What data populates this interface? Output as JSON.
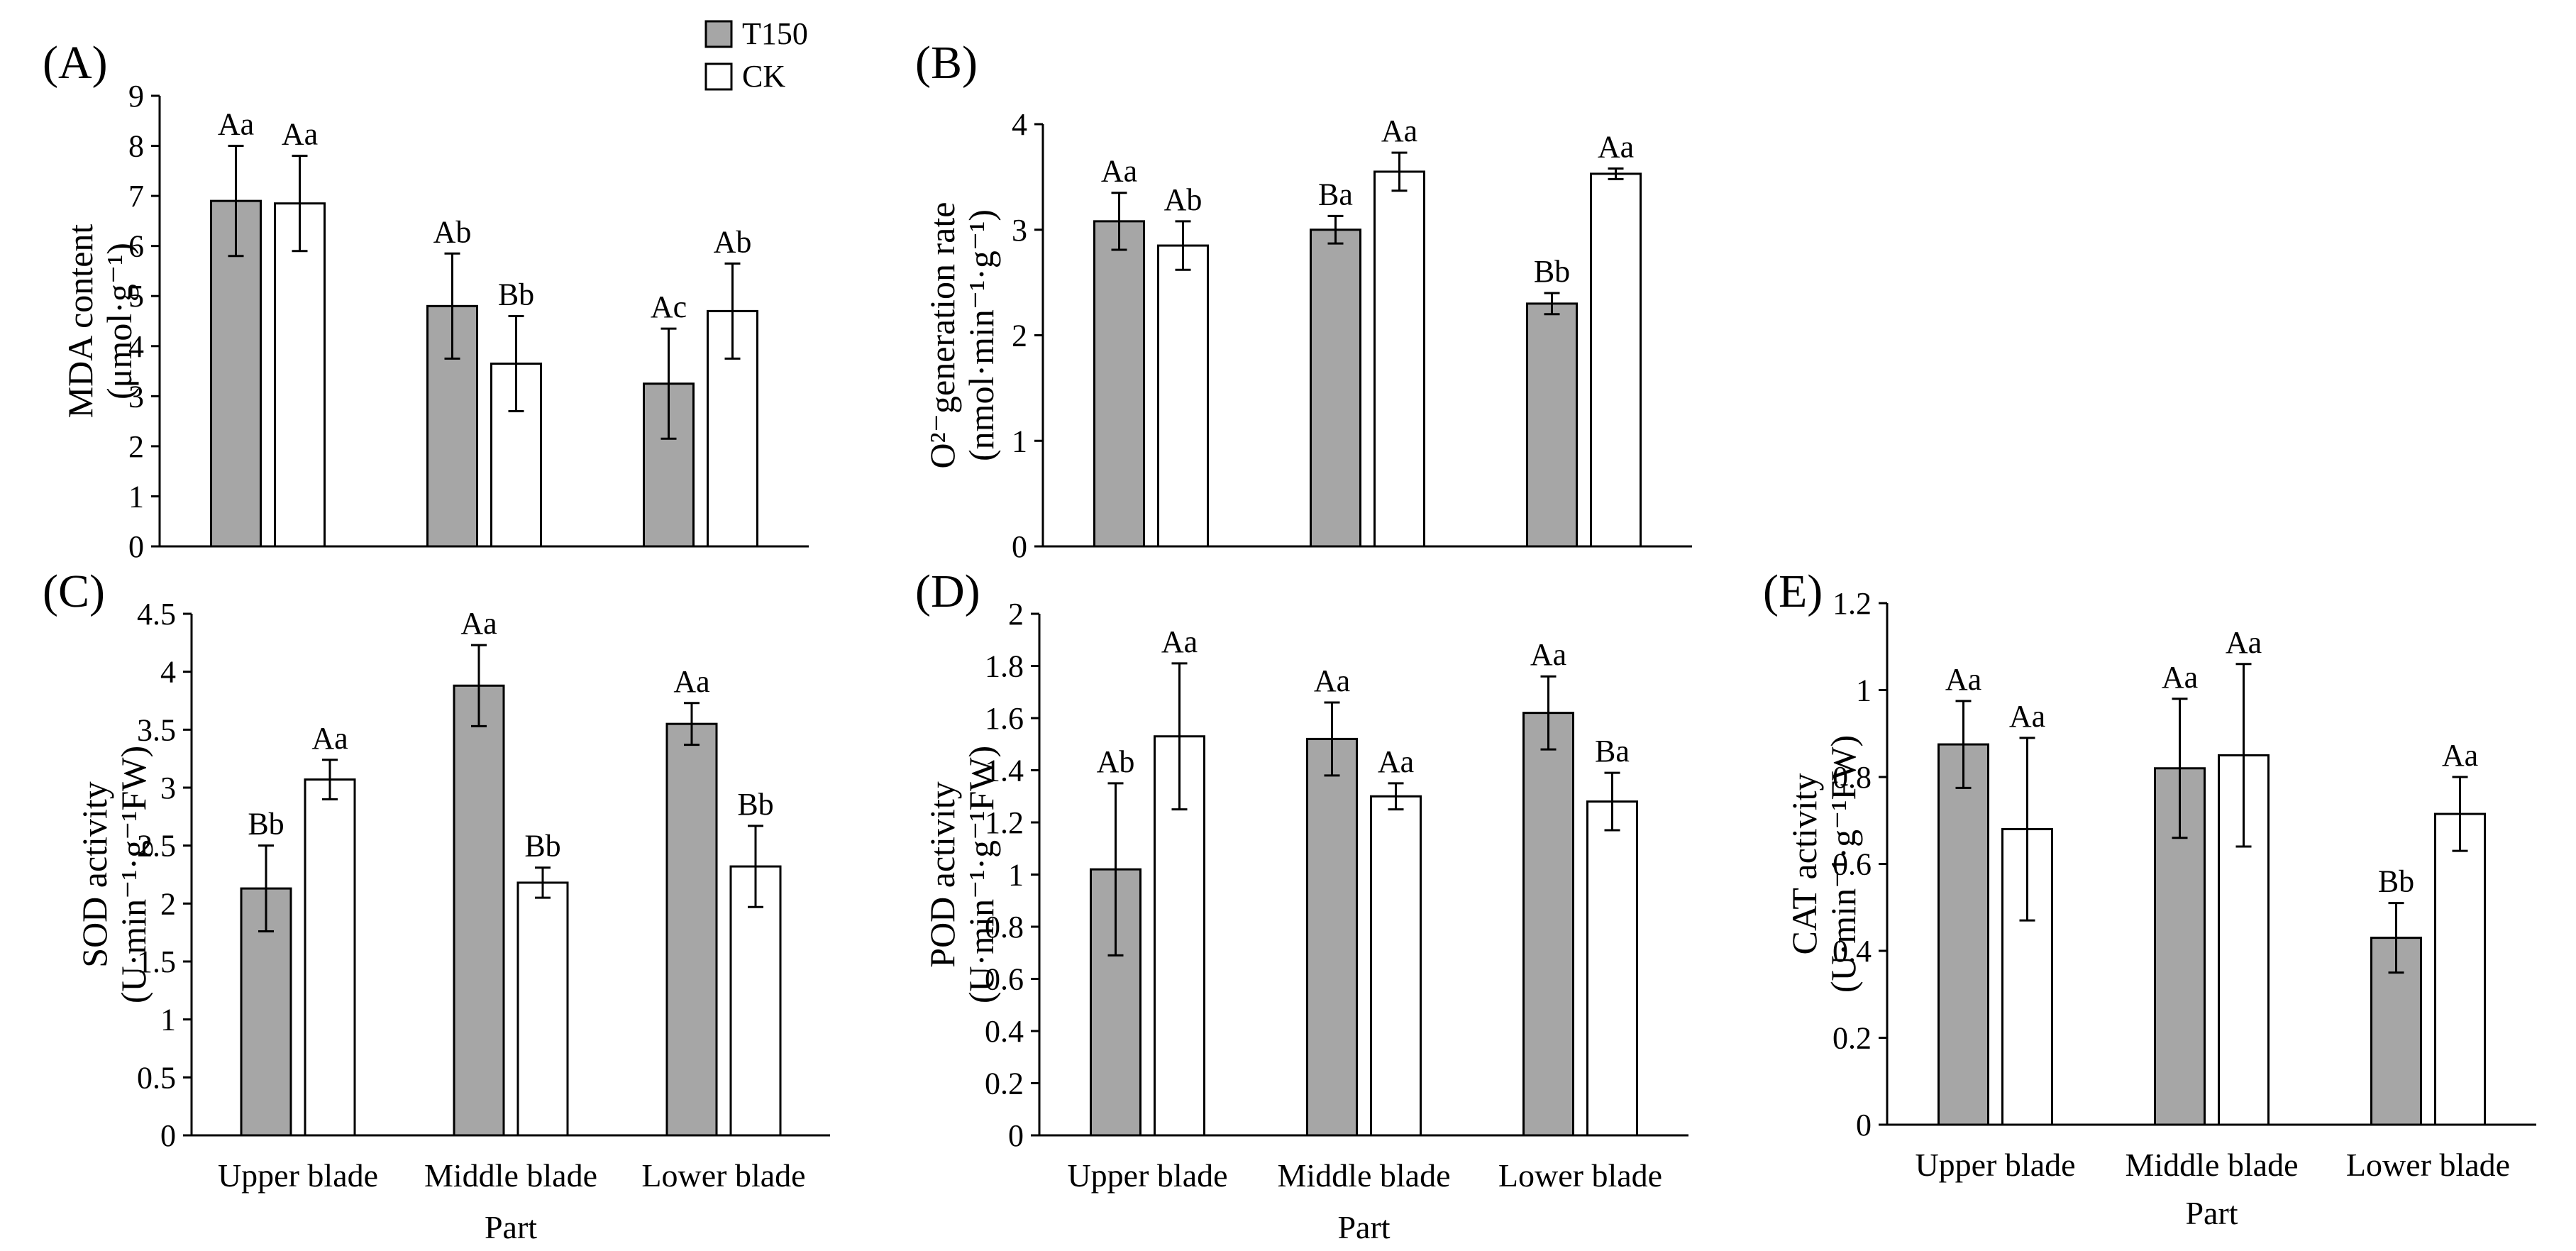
{
  "legend": [
    {
      "label": "T150",
      "color": "#a6a6a6"
    },
    {
      "label": "CK",
      "color": "#ffffff"
    }
  ],
  "colors": {
    "t150": "#a6a6a6",
    "ck": "#ffffff",
    "stroke": "#000000"
  },
  "chart_data": [
    {
      "panel": "(A)",
      "type": "bar",
      "categories": [
        "Upper blade",
        "Middle blade",
        "Lower blade"
      ],
      "series": [
        {
          "name": "T150",
          "values": [
            6.9,
            4.8,
            3.25
          ],
          "errors": [
            1.1,
            1.05,
            1.1
          ],
          "letters": [
            "Aa",
            "Ab",
            "Ac"
          ]
        },
        {
          "name": "CK",
          "values": [
            6.85,
            3.65,
            4.7
          ],
          "errors": [
            0.95,
            0.95,
            0.95
          ],
          "letters": [
            "Aa",
            "Bb",
            "Ab"
          ]
        }
      ],
      "ylim": [
        0,
        9
      ],
      "yticks": [
        "0",
        "1",
        "2",
        "3",
        "4",
        "5",
        "6",
        "7",
        "8",
        "9"
      ],
      "ylabel": [
        "MDA content",
        "(μmol·g⁻¹)"
      ],
      "show_category_labels": false,
      "xlabel": ""
    },
    {
      "panel": "(B)",
      "type": "bar",
      "categories": [
        "Upper blade",
        "Middle blade",
        "Lower blade"
      ],
      "series": [
        {
          "name": "T150",
          "values": [
            3.08,
            3.0,
            2.3
          ],
          "errors": [
            0.27,
            0.13,
            0.1
          ],
          "letters": [
            "Aa",
            "Ba",
            "Bb"
          ]
        },
        {
          "name": "CK",
          "values": [
            2.85,
            3.55,
            3.53
          ],
          "errors": [
            0.23,
            0.18,
            0.05
          ],
          "letters": [
            "Ab",
            "Aa",
            "Aa"
          ]
        }
      ],
      "ylim": [
        0,
        4
      ],
      "yticks": [
        "0",
        "1",
        "2",
        "3",
        "4"
      ],
      "ylabel": [
        "O²⁻generation rate",
        "(nmol·min⁻¹·g⁻¹)"
      ],
      "show_category_labels": false,
      "xlabel": ""
    },
    {
      "panel": "(C)",
      "type": "bar",
      "categories": [
        "Upper blade",
        "Middle blade",
        "Lower blade"
      ],
      "series": [
        {
          "name": "T150",
          "values": [
            2.13,
            3.88,
            3.55
          ],
          "errors": [
            0.37,
            0.35,
            0.18
          ],
          "letters": [
            "Bb",
            "Aa",
            "Aa"
          ]
        },
        {
          "name": "CK",
          "values": [
            3.07,
            2.18,
            2.32
          ],
          "errors": [
            0.17,
            0.13,
            0.35
          ],
          "letters": [
            "Aa",
            "Bb",
            "Bb"
          ]
        }
      ],
      "ylim": [
        0,
        4.5
      ],
      "yticks": [
        "0",
        "0.5",
        "1",
        "1.5",
        "2",
        "2.5",
        "3",
        "3.5",
        "4",
        "4.5"
      ],
      "ylabel": [
        "SOD activity",
        "(U·min⁻¹·g⁻¹FW)"
      ],
      "show_category_labels": true,
      "xlabel": "Part"
    },
    {
      "panel": "(D)",
      "type": "bar",
      "categories": [
        "Upper blade",
        "Middle blade",
        "Lower blade"
      ],
      "series": [
        {
          "name": "T150",
          "values": [
            1.02,
            1.52,
            1.62
          ],
          "errors": [
            0.33,
            0.14,
            0.14
          ],
          "letters": [
            "Ab",
            "Aa",
            "Aa"
          ]
        },
        {
          "name": "CK",
          "values": [
            1.53,
            1.3,
            1.28
          ],
          "errors": [
            0.28,
            0.05,
            0.11
          ],
          "letters": [
            "Aa",
            "Aa",
            "Ba"
          ]
        }
      ],
      "ylim": [
        0,
        2
      ],
      "yticks": [
        "0",
        "0.2",
        "0.4",
        "0.6",
        "0.8",
        "1",
        "1.2",
        "1.4",
        "1.6",
        "1.8",
        "2"
      ],
      "ylabel": [
        "POD activity",
        "(U·min⁻¹·g⁻¹FW)"
      ],
      "show_category_labels": true,
      "xlabel": "Part"
    },
    {
      "panel": "(E)",
      "type": "bar",
      "categories": [
        "Upper blade",
        "Middle blade",
        "Lower blade"
      ],
      "series": [
        {
          "name": "T150",
          "values": [
            0.875,
            0.82,
            0.43
          ],
          "errors": [
            0.1,
            0.16,
            0.08
          ],
          "letters": [
            "Aa",
            "Aa",
            "Bb"
          ]
        },
        {
          "name": "CK",
          "values": [
            0.68,
            0.85,
            0.715
          ],
          "errors": [
            0.21,
            0.21,
            0.085
          ],
          "letters": [
            "Aa",
            "Aa",
            "Aa"
          ]
        }
      ],
      "ylim": [
        0,
        1.2
      ],
      "yticks": [
        "0",
        "0.2",
        "0.4",
        "0.6",
        "0.8",
        "1",
        "1.2"
      ],
      "ylabel": [
        "CAT activity",
        "(U·min⁻¹·g⁻¹FW)"
      ],
      "show_category_labels": true,
      "xlabel": "Part"
    }
  ]
}
